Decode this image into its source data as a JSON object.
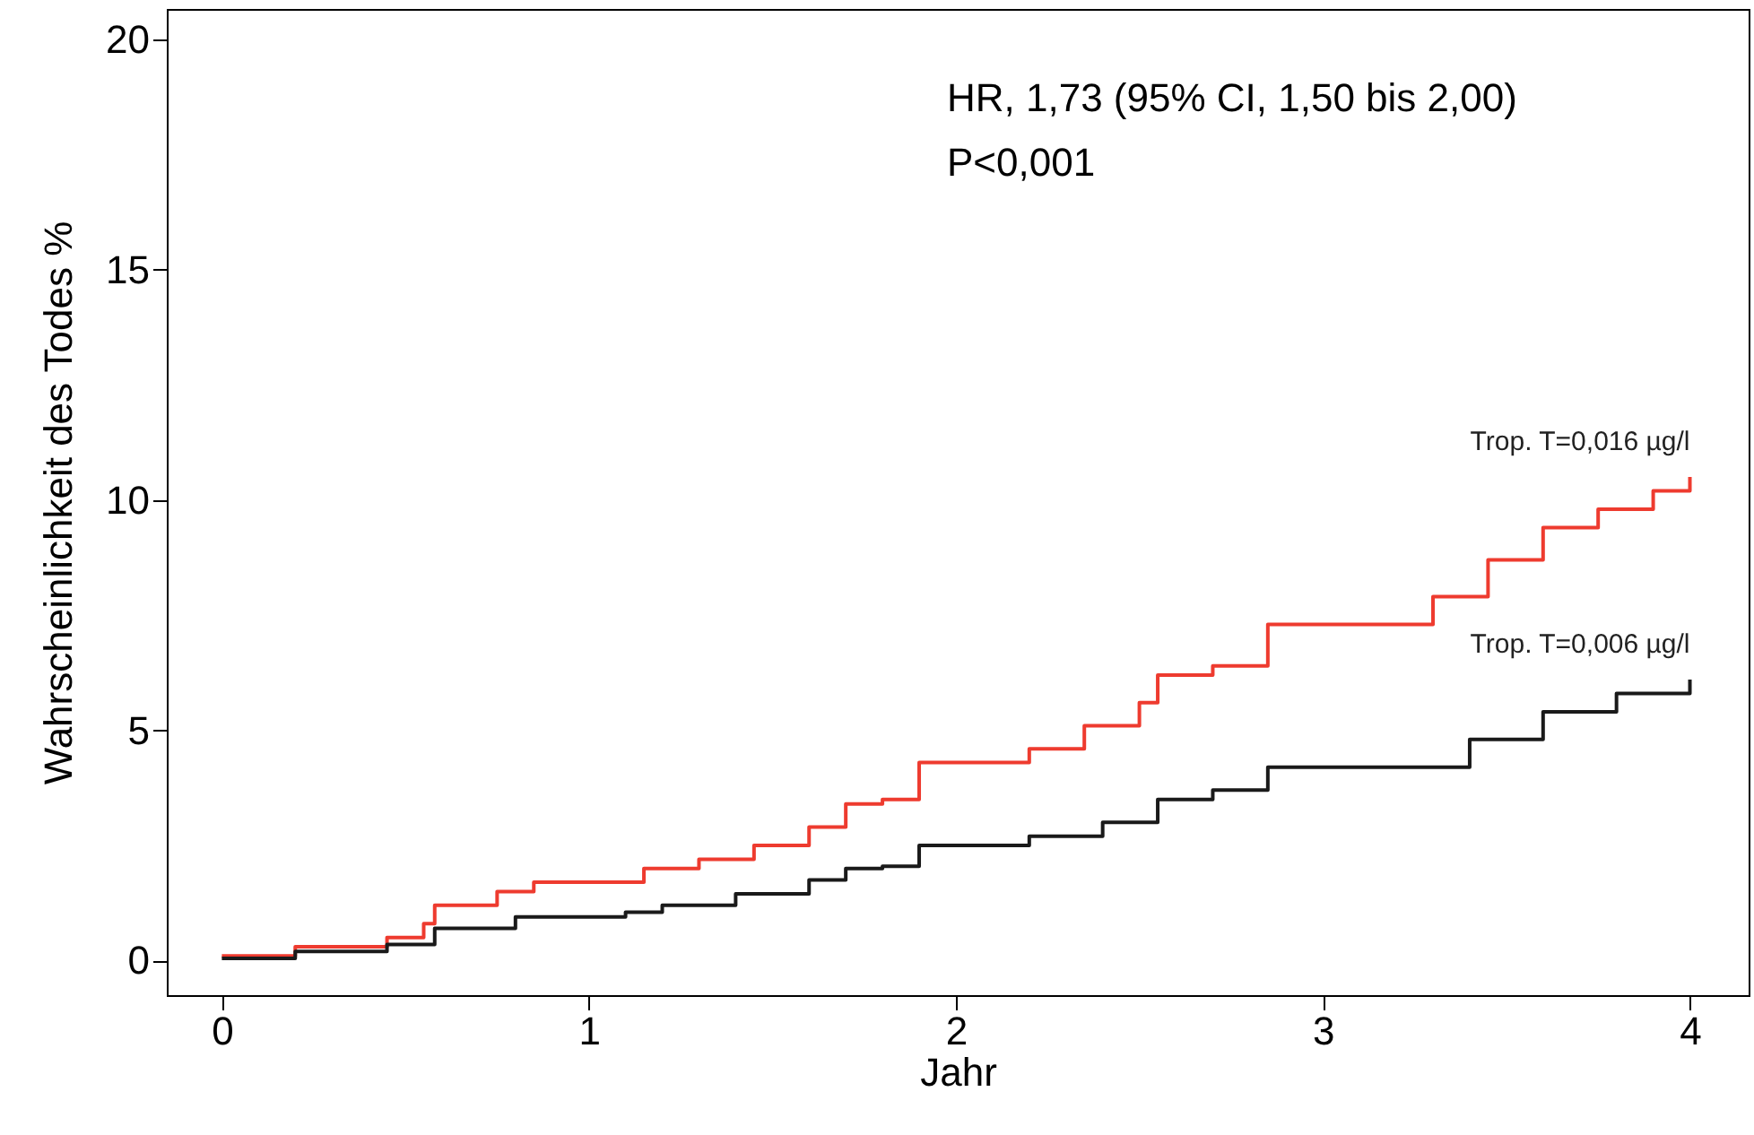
{
  "chart_data": {
    "type": "step",
    "xlabel": "Jahr",
    "ylabel": "Wahrscheinlichkeit des Todes %",
    "annotations": [
      "HR, 1,73 (95% CI, 1,50 bis 2,00)",
      "P<0,001"
    ],
    "xlim": [
      -0.15,
      4.16
    ],
    "ylim": [
      -0.75,
      20.66
    ],
    "xticks": [
      0,
      1,
      2,
      3,
      4
    ],
    "yticks": [
      0,
      5,
      10,
      15,
      20
    ],
    "grid": false,
    "series": [
      {
        "name": "Trop. T=0,016 µg/l",
        "color": "#ee3b2f",
        "x": [
          0,
          0.2,
          0.45,
          0.55,
          0.58,
          0.75,
          0.85,
          1.1,
          1.15,
          1.3,
          1.45,
          1.6,
          1.7,
          1.8,
          1.9,
          2.1,
          2.2,
          2.35,
          2.5,
          2.55,
          2.7,
          2.85,
          3.2,
          3.3,
          3.45,
          3.6,
          3.75,
          3.9,
          4.0
        ],
        "values": [
          0.1,
          0.3,
          0.5,
          0.8,
          1.2,
          1.5,
          1.7,
          1.7,
          2.0,
          2.2,
          2.5,
          2.9,
          3.4,
          3.5,
          4.3,
          4.3,
          4.6,
          5.1,
          5.6,
          6.2,
          6.4,
          7.3,
          7.3,
          7.9,
          8.7,
          9.4,
          9.8,
          10.2,
          10.5
        ]
      },
      {
        "name": "Trop. T=0,006 µg/l",
        "color": "#1a1a1a",
        "x": [
          0,
          0.2,
          0.45,
          0.58,
          0.8,
          1.1,
          1.2,
          1.4,
          1.6,
          1.7,
          1.8,
          1.9,
          2.2,
          2.4,
          2.55,
          2.7,
          2.85,
          3.2,
          3.4,
          3.6,
          3.8,
          4.0
        ],
        "values": [
          0.05,
          0.2,
          0.35,
          0.7,
          0.95,
          1.05,
          1.2,
          1.45,
          1.75,
          2.0,
          2.05,
          2.5,
          2.7,
          3.0,
          3.5,
          3.7,
          4.2,
          4.2,
          4.8,
          5.4,
          5.8,
          6.1
        ]
      }
    ]
  }
}
